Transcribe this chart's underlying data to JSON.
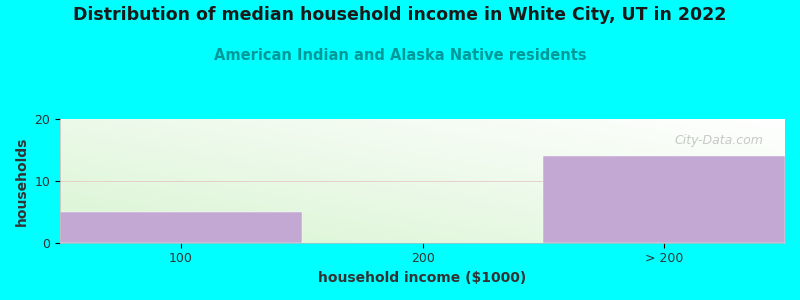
{
  "title": "Distribution of median household income in White City, UT in 2022",
  "subtitle": "American Indian and Alaska Native residents",
  "xlabel": "household income ($1000)",
  "ylabel": "households",
  "categories": [
    "100",
    "200",
    "> 200"
  ],
  "values": [
    5,
    0,
    14
  ],
  "bar_color": "#C4A8D4",
  "background_color": "#00FFFF",
  "grad_green": [
    0.851,
    0.957,
    0.827
  ],
  "grad_white": [
    1.0,
    1.0,
    1.0
  ],
  "ylim": [
    0,
    20
  ],
  "yticks": [
    0,
    10,
    20
  ],
  "title_color": "#1a1a1a",
  "subtitle_color": "#009999",
  "axis_label_color": "#333333",
  "tick_color": "#333333",
  "watermark": "City-Data.com",
  "title_fontsize": 12.5,
  "subtitle_fontsize": 10.5,
  "axis_label_fontsize": 10,
  "tick_fontsize": 9,
  "watermark_fontsize": 9
}
